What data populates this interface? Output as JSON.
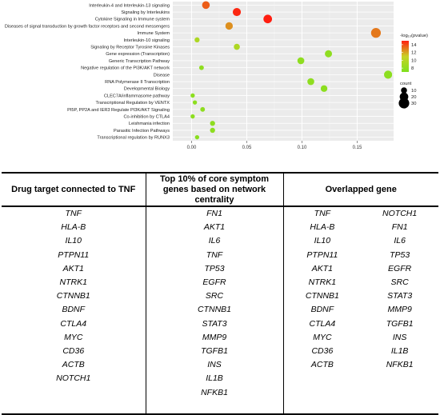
{
  "chart_data": {
    "type": "scatter",
    "x_ticks": [
      0.0,
      0.05,
      0.1,
      0.15
    ],
    "x_tick_labels": [
      "0.00",
      "0.05",
      "0.10",
      "0.15"
    ],
    "xlim": [
      -0.017,
      0.183
    ],
    "categories": [
      "Interleukin-4 and Interleukin-13 signaling",
      "Signaling by Interleukins",
      "Cytokine Signaling in Immune system",
      "Diseases of signal transduction by growth factor receptors and second messengers",
      "Immune System",
      "Interleukin-10 signaling",
      "Signaling by Receptor Tyrosine Kinases",
      "Gene expression (Transcription)",
      "Generic Transcription Pathway",
      "Negative regulation of the PI3K/AKT network",
      "Disease",
      "RNA Polymerase II Transcription",
      "Developmental Biology",
      "CLEC7A/inflammasome pathway",
      "Transcriptional Regulation by VENTX",
      "PI5P, PP2A and IER3 Regulate PI3K/AKT Signaling",
      "Co-inhibition by CTLA4",
      "Leishmania infection",
      "Parasitic Infection Pathways",
      "Transcriptional regulation by RUNX3"
    ],
    "points": [
      {
        "x": 0.013,
        "neglogp": 13.6,
        "count": 16
      },
      {
        "x": 0.041,
        "neglogp": 14.8,
        "count": 18
      },
      {
        "x": 0.069,
        "neglogp": 15.0,
        "count": 20
      },
      {
        "x": 0.034,
        "neglogp": 12.5,
        "count": 15
      },
      {
        "x": 0.167,
        "neglogp": 13.0,
        "count": 26
      },
      {
        "x": 0.005,
        "neglogp": 9.5,
        "count": 7
      },
      {
        "x": 0.041,
        "neglogp": 9.5,
        "count": 10
      },
      {
        "x": 0.124,
        "neglogp": 7.9,
        "count": 14
      },
      {
        "x": 0.099,
        "neglogp": 7.9,
        "count": 13
      },
      {
        "x": 0.009,
        "neglogp": 7.9,
        "count": 6
      },
      {
        "x": 0.178,
        "neglogp": 7.7,
        "count": 18
      },
      {
        "x": 0.108,
        "neglogp": 7.9,
        "count": 13
      },
      {
        "x": 0.12,
        "neglogp": 7.7,
        "count": 12
      },
      {
        "x": 0.001,
        "neglogp": 7.7,
        "count": 5
      },
      {
        "x": 0.003,
        "neglogp": 7.7,
        "count": 5
      },
      {
        "x": 0.01,
        "neglogp": 7.9,
        "count": 6
      },
      {
        "x": 0.001,
        "neglogp": 7.7,
        "count": 5
      },
      {
        "x": 0.019,
        "neglogp": 7.8,
        "count": 7
      },
      {
        "x": 0.019,
        "neglogp": 7.8,
        "count": 7
      },
      {
        "x": 0.005,
        "neglogp": 7.6,
        "count": 5
      }
    ],
    "color_legend": {
      "title": "-log₁₀(pvalue)",
      "ticks": [
        "14",
        "12",
        "10",
        "8"
      ],
      "tick_values": [
        14,
        12,
        10,
        8
      ],
      "range": [
        7,
        15
      ],
      "colors": [
        "#7fe01e",
        "#c8d226",
        "#ff1e10"
      ]
    },
    "size_legend": {
      "title": "count",
      "labels": [
        "10",
        "20",
        "30"
      ],
      "values": [
        10,
        20,
        30
      ]
    },
    "grid": true
  },
  "table": {
    "headers": {
      "col1": "Drug target connected to TNF",
      "col2": "Top 10% of core symptom genes based on network centrality",
      "col3": "Overlapped gene"
    },
    "col1": [
      "TNF",
      "HLA-B",
      "IL10",
      "PTPN11",
      "AKT1",
      "NTRK1",
      "CTNNB1",
      "BDNF",
      "CTLA4",
      "MYC",
      "CD36",
      "ACTB",
      "NOTCH1",
      "",
      ""
    ],
    "col2": [
      "FN1",
      "AKT1",
      "IL6",
      "TNF",
      "TP53",
      "EGFR",
      "SRC",
      "CTNNB1",
      "STAT3",
      "MMP9",
      "TGFB1",
      "INS",
      "IL1B",
      "NFKB1",
      ""
    ],
    "col3a": [
      "TNF",
      "HLA-B",
      "IL10",
      "PTPN11",
      "AKT1",
      "NTRK1",
      "CTNNB1",
      "BDNF",
      "CTLA4",
      "MYC",
      "CD36",
      "ACTB",
      "",
      "",
      ""
    ],
    "col3b": [
      "NOTCH1",
      "FN1",
      "IL6",
      "TP53",
      "EGFR",
      "SRC",
      "STAT3",
      "MMP9",
      "TGFB1",
      "INS",
      "IL1B",
      "NFKB1",
      "",
      "",
      ""
    ]
  }
}
